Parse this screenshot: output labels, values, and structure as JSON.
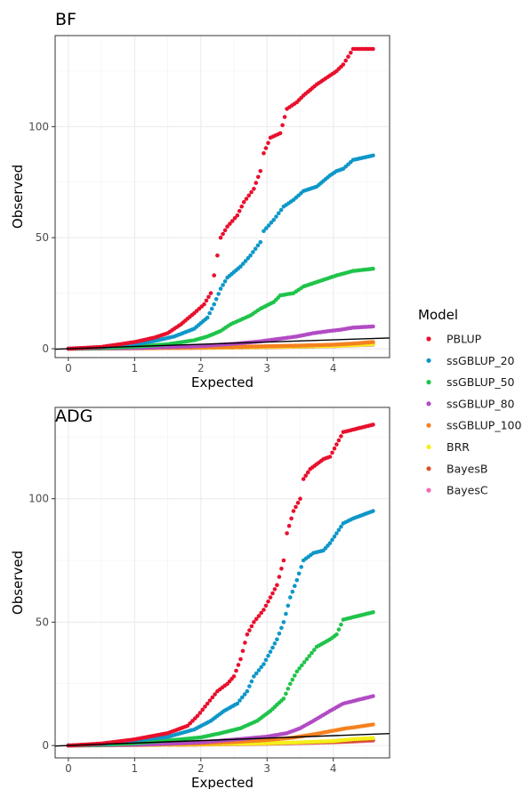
{
  "legend": {
    "title": "Model",
    "position": "right",
    "entries": [
      {
        "name": "PBLUP",
        "color": "#e8102d"
      },
      {
        "name": "ssGBLUP_20",
        "color": "#0e97c8"
      },
      {
        "name": "ssGBLUP_50",
        "color": "#1fc44a"
      },
      {
        "name": "ssGBLUP_80",
        "color": "#b24bc4"
      },
      {
        "name": "ssGBLUP_100",
        "color": "#f5811f"
      },
      {
        "name": "BRR",
        "color": "#f4f01a"
      },
      {
        "name": "BayesB",
        "color": "#d6532b"
      },
      {
        "name": "BayesC",
        "color": "#f06bb7"
      }
    ]
  },
  "chart_data": [
    {
      "type": "scatter",
      "title": "BF",
      "xlabel": "Expected",
      "ylabel": "Observed",
      "xlim": [
        -0.2,
        4.85
      ],
      "ylim": [
        -4,
        141
      ],
      "xticks": [
        0,
        1,
        2,
        3,
        4
      ],
      "yticks": [
        0,
        50,
        100
      ],
      "grid": true,
      "reference_line": {
        "intercept": 0,
        "slope": 1,
        "color": "#000000"
      },
      "series": [
        {
          "name": "PBLUP",
          "points": [
            [
              0,
              0
            ],
            [
              0.5,
              0.8
            ],
            [
              1,
              3
            ],
            [
              1.3,
              5
            ],
            [
              1.5,
              7
            ],
            [
              1.7,
              11
            ],
            [
              1.9,
              16
            ],
            [
              2.05,
              20
            ],
            [
              2.15,
              25
            ],
            [
              2.2,
              33
            ],
            [
              2.25,
              42
            ],
            [
              2.3,
              50
            ],
            [
              2.4,
              55
            ],
            [
              2.55,
              60
            ],
            [
              2.65,
              66
            ],
            [
              2.8,
              72
            ],
            [
              2.9,
              80
            ],
            [
              2.95,
              88
            ],
            [
              3.05,
              95
            ],
            [
              3.2,
              97
            ],
            [
              3.3,
              108
            ],
            [
              3.45,
              111
            ],
            [
              3.55,
              114
            ],
            [
              3.75,
              119
            ],
            [
              3.95,
              123
            ],
            [
              4.05,
              125
            ],
            [
              4.15,
              128
            ],
            [
              4.3,
              135
            ],
            [
              4.6,
              135
            ]
          ]
        },
        {
          "name": "ssGBLUP_20",
          "points": [
            [
              0,
              0
            ],
            [
              0.5,
              0.6
            ],
            [
              1,
              2
            ],
            [
              1.3,
              3.5
            ],
            [
              1.6,
              5.5
            ],
            [
              1.9,
              9
            ],
            [
              2.1,
              14
            ],
            [
              2.2,
              20
            ],
            [
              2.3,
              27
            ],
            [
              2.4,
              32
            ],
            [
              2.6,
              37
            ],
            [
              2.75,
              42
            ],
            [
              2.9,
              48
            ],
            [
              2.95,
              53
            ],
            [
              3.1,
              58
            ],
            [
              3.25,
              64
            ],
            [
              3.4,
              67
            ],
            [
              3.55,
              71
            ],
            [
              3.75,
              73
            ],
            [
              3.95,
              78
            ],
            [
              4.05,
              80
            ],
            [
              4.15,
              81
            ],
            [
              4.3,
              85
            ],
            [
              4.6,
              87
            ]
          ]
        },
        {
          "name": "ssGBLUP_50",
          "points": [
            [
              0,
              0
            ],
            [
              0.5,
              0.3
            ],
            [
              1,
              0.9
            ],
            [
              1.5,
              2
            ],
            [
              1.9,
              3.8
            ],
            [
              2.1,
              5.5
            ],
            [
              2.3,
              8
            ],
            [
              2.45,
              11
            ],
            [
              2.6,
              13
            ],
            [
              2.75,
              15
            ],
            [
              2.9,
              18
            ],
            [
              3.1,
              21
            ],
            [
              3.2,
              24
            ],
            [
              3.4,
              25
            ],
            [
              3.55,
              28
            ],
            [
              3.75,
              30
            ],
            [
              3.95,
              32
            ],
            [
              4.05,
              33
            ],
            [
              4.3,
              35
            ],
            [
              4.6,
              36
            ]
          ]
        },
        {
          "name": "ssGBLUP_80",
          "points": [
            [
              0,
              0
            ],
            [
              1,
              0.3
            ],
            [
              1.5,
              0.7
            ],
            [
              2,
              1.2
            ],
            [
              2.5,
              2.2
            ],
            [
              2.9,
              3.3
            ],
            [
              3.2,
              4.5
            ],
            [
              3.45,
              5.5
            ],
            [
              3.7,
              7
            ],
            [
              3.95,
              8
            ],
            [
              4.1,
              8.5
            ],
            [
              4.3,
              9.5
            ],
            [
              4.6,
              10
            ]
          ]
        },
        {
          "name": "ssGBLUP_100",
          "points": [
            [
              0,
              0
            ],
            [
              1,
              0.2
            ],
            [
              2,
              0.6
            ],
            [
              3,
              1.1
            ],
            [
              3.5,
              1.4
            ],
            [
              4,
              1.8
            ],
            [
              4.3,
              2.3
            ],
            [
              4.6,
              3
            ]
          ]
        },
        {
          "name": "BRR",
          "points": [
            [
              0,
              0
            ],
            [
              1,
              0.2
            ],
            [
              2,
              0.5
            ],
            [
              3,
              0.8
            ],
            [
              3.5,
              1
            ],
            [
              4,
              1.2
            ],
            [
              4.3,
              1.6
            ],
            [
              4.6,
              2
            ]
          ]
        },
        {
          "name": "BayesB",
          "points": [
            [
              0,
              0
            ],
            [
              1,
              0.2
            ],
            [
              2,
              0.4
            ],
            [
              3,
              0.7
            ],
            [
              3.5,
              0.9
            ],
            [
              4,
              1.3
            ],
            [
              4.3,
              1.8
            ],
            [
              4.6,
              2.3
            ]
          ]
        },
        {
          "name": "BayesC",
          "points": [
            [
              0,
              0
            ],
            [
              1,
              0.2
            ],
            [
              2,
              0.4
            ],
            [
              3,
              0.7
            ],
            [
              3.5,
              0.9
            ],
            [
              4,
              1.1
            ],
            [
              4.3,
              1.5
            ],
            [
              4.6,
              1.8
            ]
          ]
        }
      ]
    },
    {
      "type": "scatter",
      "title": "ADG",
      "xlabel": "Expected",
      "ylabel": "Observed",
      "xlim": [
        -0.2,
        4.85
      ],
      "ylim": [
        -5,
        137
      ],
      "xticks": [
        0,
        1,
        2,
        3,
        4
      ],
      "yticks": [
        0,
        50,
        100
      ],
      "grid": true,
      "reference_line": {
        "intercept": 0,
        "slope": 1,
        "color": "#000000"
      },
      "series": [
        {
          "name": "PBLUP",
          "points": [
            [
              0,
              0
            ],
            [
              0.5,
              0.8
            ],
            [
              1,
              2.5
            ],
            [
              1.5,
              5
            ],
            [
              1.8,
              8
            ],
            [
              1.95,
              12
            ],
            [
              2.1,
              17
            ],
            [
              2.25,
              22
            ],
            [
              2.4,
              25
            ],
            [
              2.5,
              28
            ],
            [
              2.6,
              35
            ],
            [
              2.7,
              45
            ],
            [
              2.8,
              50
            ],
            [
              2.95,
              55
            ],
            [
              3.05,
              60
            ],
            [
              3.15,
              65
            ],
            [
              3.25,
              75
            ],
            [
              3.3,
              86
            ],
            [
              3.4,
              95
            ],
            [
              3.5,
              100
            ],
            [
              3.55,
              108
            ],
            [
              3.65,
              112
            ],
            [
              3.75,
              114
            ],
            [
              3.85,
              116
            ],
            [
              3.95,
              117
            ],
            [
              4.15,
              127
            ],
            [
              4.3,
              128
            ],
            [
              4.6,
              130
            ]
          ]
        },
        {
          "name": "ssGBLUP_20",
          "points": [
            [
              0,
              0
            ],
            [
              0.5,
              0.6
            ],
            [
              1,
              2
            ],
            [
              1.5,
              3.5
            ],
            [
              1.9,
              6.5
            ],
            [
              2.15,
              10
            ],
            [
              2.35,
              14
            ],
            [
              2.55,
              17
            ],
            [
              2.7,
              22
            ],
            [
              2.8,
              28
            ],
            [
              2.95,
              33
            ],
            [
              3.05,
              38
            ],
            [
              3.15,
              43
            ],
            [
              3.25,
              50
            ],
            [
              3.35,
              60
            ],
            [
              3.45,
              67
            ],
            [
              3.55,
              75
            ],
            [
              3.7,
              78
            ],
            [
              3.85,
              79
            ],
            [
              3.95,
              82
            ],
            [
              4.15,
              90
            ],
            [
              4.3,
              92
            ],
            [
              4.6,
              95
            ]
          ]
        },
        {
          "name": "ssGBLUP_50",
          "points": [
            [
              0,
              0
            ],
            [
              0.5,
              0.3
            ],
            [
              1,
              0.9
            ],
            [
              1.5,
              2
            ],
            [
              2,
              3.3
            ],
            [
              2.3,
              5
            ],
            [
              2.6,
              7
            ],
            [
              2.85,
              10
            ],
            [
              3.05,
              14
            ],
            [
              3.25,
              19
            ],
            [
              3.35,
              25
            ],
            [
              3.45,
              30
            ],
            [
              3.6,
              35
            ],
            [
              3.75,
              40
            ],
            [
              3.95,
              43
            ],
            [
              4.05,
              45
            ],
            [
              4.15,
              51
            ],
            [
              4.3,
              52
            ],
            [
              4.6,
              54
            ]
          ]
        },
        {
          "name": "ssGBLUP_80",
          "points": [
            [
              0,
              0
            ],
            [
              1,
              0.3
            ],
            [
              1.5,
              0.7
            ],
            [
              2,
              1.3
            ],
            [
              2.5,
              2.4
            ],
            [
              3,
              3.6
            ],
            [
              3.3,
              5
            ],
            [
              3.5,
              7
            ],
            [
              3.7,
              10
            ],
            [
              3.95,
              14
            ],
            [
              4.15,
              17
            ],
            [
              4.3,
              18
            ],
            [
              4.6,
              20
            ]
          ]
        },
        {
          "name": "ssGBLUP_100",
          "points": [
            [
              0,
              0
            ],
            [
              1,
              0.3
            ],
            [
              2,
              0.8
            ],
            [
              2.5,
              1.4
            ],
            [
              3,
              2.2
            ],
            [
              3.4,
              3.2
            ],
            [
              3.7,
              4.5
            ],
            [
              4,
              6
            ],
            [
              4.2,
              7
            ],
            [
              4.35,
              7.5
            ],
            [
              4.6,
              8.5
            ]
          ]
        },
        {
          "name": "BRR",
          "points": [
            [
              0,
              0
            ],
            [
              1,
              0.2
            ],
            [
              2,
              0.5
            ],
            [
              3,
              0.9
            ],
            [
              3.5,
              1.3
            ],
            [
              4,
              1.8
            ],
            [
              4.3,
              2.6
            ],
            [
              4.6,
              3
            ]
          ]
        },
        {
          "name": "BayesB",
          "points": [
            [
              0,
              0
            ],
            [
              1,
              0.2
            ],
            [
              2,
              0.4
            ],
            [
              3,
              0.8
            ],
            [
              3.5,
              1.1
            ],
            [
              4,
              1.4
            ],
            [
              4.3,
              1.8
            ],
            [
              4.6,
              2.2
            ]
          ]
        },
        {
          "name": "BayesC",
          "points": [
            [
              0,
              0
            ],
            [
              1,
              0.2
            ],
            [
              2,
              0.4
            ],
            [
              3,
              0.7
            ],
            [
              3.5,
              1
            ],
            [
              4,
              1.3
            ],
            [
              4.3,
              1.6
            ],
            [
              4.6,
              2
            ]
          ]
        }
      ]
    }
  ]
}
